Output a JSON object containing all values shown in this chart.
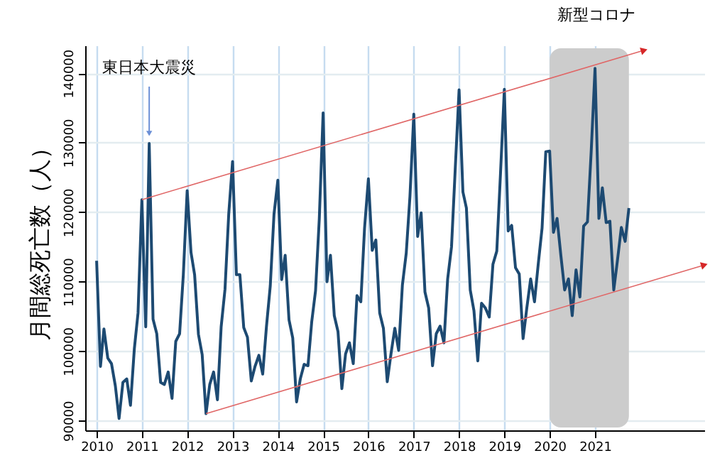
{
  "chart_data": {
    "type": "line",
    "ylabel": "月間総死亡数（人）",
    "x": [
      "2010-01",
      "2010-02",
      "2010-03",
      "2010-04",
      "2010-05",
      "2010-06",
      "2010-07",
      "2010-08",
      "2010-09",
      "2010-10",
      "2010-11",
      "2010-12",
      "2011-01",
      "2011-02",
      "2011-03",
      "2011-04",
      "2011-05",
      "2011-06",
      "2011-07",
      "2011-08",
      "2011-09",
      "2011-10",
      "2011-11",
      "2011-12",
      "2012-01",
      "2012-02",
      "2012-03",
      "2012-04",
      "2012-05",
      "2012-06",
      "2012-07",
      "2012-08",
      "2012-09",
      "2012-10",
      "2012-11",
      "2012-12",
      "2013-01",
      "2013-02",
      "2013-03",
      "2013-04",
      "2013-05",
      "2013-06",
      "2013-07",
      "2013-08",
      "2013-09",
      "2013-10",
      "2013-11",
      "2013-12",
      "2014-01",
      "2014-02",
      "2014-03",
      "2014-04",
      "2014-05",
      "2014-06",
      "2014-07",
      "2014-08",
      "2014-09",
      "2014-10",
      "2014-11",
      "2014-12",
      "2015-01",
      "2015-02",
      "2015-03",
      "2015-04",
      "2015-05",
      "2015-06",
      "2015-07",
      "2015-08",
      "2015-09",
      "2015-10",
      "2015-11",
      "2015-12",
      "2016-01",
      "2016-02",
      "2016-03",
      "2016-04",
      "2016-05",
      "2016-06",
      "2016-07",
      "2016-08",
      "2016-09",
      "2016-10",
      "2016-11",
      "2016-12",
      "2017-01",
      "2017-02",
      "2017-03",
      "2017-04",
      "2017-05",
      "2017-06",
      "2017-07",
      "2017-08",
      "2017-09",
      "2017-10",
      "2017-11",
      "2017-12",
      "2018-01",
      "2018-02",
      "2018-03",
      "2018-04",
      "2018-05",
      "2018-06",
      "2018-07",
      "2018-08",
      "2018-09",
      "2018-10",
      "2018-11",
      "2018-12",
      "2019-01",
      "2019-02",
      "2019-03",
      "2019-04",
      "2019-05",
      "2019-06",
      "2019-07",
      "2019-08",
      "2019-09",
      "2019-10",
      "2019-11",
      "2019-12",
      "2020-01",
      "2020-02",
      "2020-03",
      "2020-04",
      "2020-05",
      "2020-06",
      "2020-07",
      "2020-08",
      "2020-09",
      "2020-10",
      "2020-11",
      "2020-12",
      "2021-01",
      "2021-02",
      "2021-03",
      "2021-04",
      "2021-05",
      "2021-06",
      "2021-07",
      "2021-08",
      "2021-09",
      "2021-10"
    ],
    "series": [
      {
        "color": "#1d4a72",
        "values": [
          113000,
          97800,
          103200,
          99000,
          98200,
          95000,
          90300,
          95500,
          96000,
          92200,
          100300,
          105500,
          121800,
          103500,
          129900,
          104600,
          102500,
          95500,
          95200,
          97000,
          93200,
          101400,
          102500,
          111000,
          123100,
          114200,
          111000,
          102400,
          99500,
          91000,
          95200,
          97000,
          93000,
          103500,
          108900,
          119700,
          127300,
          111000,
          111000,
          103400,
          102000,
          95700,
          97800,
          99400,
          96700,
          103500,
          109400,
          119700,
          124600,
          110300,
          113800,
          104500,
          101900,
          92700,
          96000,
          98100,
          97900,
          104200,
          108700,
          119000,
          134300,
          110000,
          113800,
          105100,
          102800,
          94600,
          99600,
          101200,
          98200,
          108000,
          107100,
          117700,
          124800,
          114500,
          116000,
          105500,
          103300,
          95600,
          99600,
          103300,
          100100,
          109500,
          114100,
          122300,
          134100,
          116500,
          119900,
          108500,
          106200,
          97900,
          102500,
          103600,
          101200,
          110400,
          115000,
          126200,
          137600,
          122900,
          120600,
          108800,
          105800,
          98600,
          106900,
          106200,
          104900,
          112500,
          114400,
          125600,
          137700,
          117300,
          118100,
          112000,
          111100,
          101800,
          106200,
          110400,
          107100,
          112500,
          117700,
          128700,
          128800,
          117100,
          119100,
          113700,
          108800,
          110400,
          105100,
          111700,
          107800,
          118000,
          118600,
          128700,
          140700,
          119100,
          123500,
          118500,
          118700,
          108800,
          113100,
          117800,
          115800,
          120600
        ]
      },
      {
        "type": "line",
        "color": "#e06666",
        "x": [
          "2011-01",
          "2022-02"
        ],
        "values": [
          121800,
          143300
        ]
      },
      {
        "type": "line",
        "color": "#e06666",
        "x": [
          "2012-06",
          "2023-06"
        ],
        "values": [
          91000,
          112400
        ]
      }
    ],
    "xlim": [
      "2009-10",
      "2023-06"
    ],
    "ylim": [
      88600,
      144000
    ],
    "xticks": [
      "2010",
      "2011",
      "2012",
      "2013",
      "2014",
      "2015",
      "2016",
      "2017",
      "2018",
      "2019",
      "2020",
      "2021"
    ],
    "yticks": [
      90000,
      100000,
      110000,
      120000,
      130000,
      140000
    ],
    "grid": true,
    "line_style": "solid",
    "annotations": [
      {
        "text": "東日本大震災",
        "x": "2011-03",
        "y": 129900
      }
    ],
    "bands": [
      {
        "axis": "x",
        "from": "2020-01",
        "to": "2021-10",
        "label": "新型コロナ",
        "color": "#cccccc"
      }
    ]
  }
}
